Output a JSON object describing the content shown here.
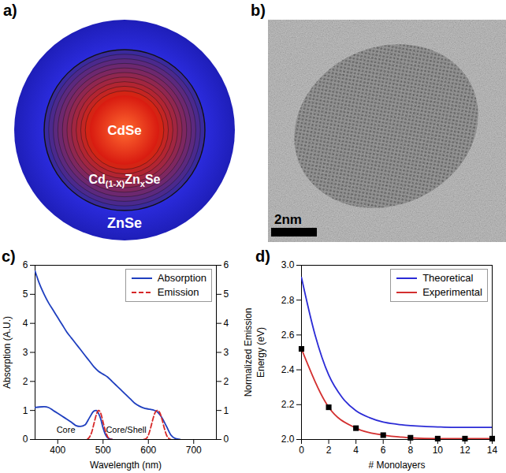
{
  "diagram": {
    "panel_label": "a)",
    "layers": [
      {
        "label": [
          {
            "text": "CdSe"
          }
        ]
      },
      {
        "label": [
          {
            "text": "Cd"
          },
          {
            "text": "(1-X)",
            "sub": true
          },
          {
            "text": "Zn"
          },
          {
            "text": "x",
            "sub": true
          },
          {
            "text": "Se"
          }
        ]
      },
      {
        "label": [
          {
            "text": "ZnSe"
          }
        ]
      }
    ]
  },
  "image": {
    "panel_label": "b)",
    "scale_bar": "2nm"
  },
  "chart_data": [
    {
      "type": "line",
      "panel_label": "c)",
      "x_label": "Wavelength (nm)",
      "y_label": "Absorption (A.U.)",
      "y2_label": "Normalized Emission",
      "xlim": [
        350,
        750
      ],
      "xticks": [
        400,
        500,
        600,
        700
      ],
      "ylim": [
        0,
        6
      ],
      "yticks": [
        0,
        1,
        2,
        3,
        4,
        5,
        6
      ],
      "y2lim": [
        0,
        6
      ],
      "y2ticks": [
        0,
        1,
        2,
        3,
        4,
        5,
        6
      ],
      "legend": "top-right",
      "annotations": [
        {
          "text": "Core",
          "x": 418,
          "y": 0.32
        },
        {
          "text": "Core/Shell",
          "x": 551,
          "y": 0.32
        }
      ],
      "series": [
        {
          "name": "Absorption",
          "color": "#1f3fbf",
          "line_style": "solid",
          "x": [
            350,
            360,
            370,
            380,
            390,
            400,
            410,
            420,
            430,
            440,
            450,
            460,
            470,
            480,
            490,
            500,
            510,
            520,
            530,
            540,
            550,
            560,
            570,
            580,
            590,
            600,
            610,
            620,
            630,
            640,
            650,
            660,
            670
          ],
          "values": [
            5.8,
            5.35,
            5.0,
            4.7,
            4.45,
            4.2,
            3.95,
            3.7,
            3.5,
            3.3,
            3.1,
            2.9,
            2.7,
            2.5,
            2.35,
            2.25,
            2.15,
            2.0,
            1.85,
            1.7,
            1.55,
            1.4,
            1.25,
            1.15,
            1.08,
            1.05,
            1.02,
            0.95,
            0.75,
            0.45,
            0.15,
            0.03,
            0
          ]
        },
        {
          "name": "Absorption",
          "color": "#1f3fbf",
          "line_style": "solid",
          "x": [
            350,
            360,
            370,
            380,
            390,
            400,
            410,
            420,
            430,
            440,
            450,
            460,
            470,
            480,
            485,
            490,
            495,
            500,
            505,
            510,
            520
          ],
          "values": [
            1.1,
            1.12,
            1.13,
            1.1,
            1.0,
            0.9,
            0.8,
            0.7,
            0.6,
            0.48,
            0.45,
            0.5,
            0.75,
            0.98,
            1.0,
            0.9,
            0.7,
            0.4,
            0.18,
            0.06,
            0
          ]
        },
        {
          "name": "Emission",
          "color": "#d62728",
          "line_style": "dashed",
          "axis": "y2",
          "x": [
            465,
            470,
            475,
            480,
            485,
            490,
            495,
            500,
            505,
            510,
            515,
            520
          ],
          "values": [
            0,
            0.08,
            0.25,
            0.55,
            0.85,
            1.0,
            0.9,
            0.6,
            0.3,
            0.1,
            0.02,
            0
          ]
        },
        {
          "name": "Emission",
          "color": "#d62728",
          "line_style": "dashed",
          "axis": "y2",
          "x": [
            590,
            595,
            600,
            605,
            610,
            615,
            620,
            625,
            630,
            635,
            640,
            645,
            650
          ],
          "values": [
            0,
            0.03,
            0.15,
            0.4,
            0.7,
            0.93,
            1.0,
            0.93,
            0.7,
            0.4,
            0.15,
            0.04,
            0
          ]
        }
      ]
    },
    {
      "type": "line",
      "panel_label": "d)",
      "x_label": "# Monolayers",
      "y_label": "Energy (eV)",
      "xlim": [
        0,
        14
      ],
      "xticks": [
        0,
        2,
        4,
        6,
        8,
        10,
        12,
        14
      ],
      "ylim": [
        2,
        3
      ],
      "yticks": [
        {
          "value": 2,
          "label": "2.0"
        },
        {
          "value": 2.2,
          "label": "2.2"
        },
        {
          "value": 2.4,
          "label": "2.4"
        },
        {
          "value": 2.6,
          "label": "2.6"
        },
        {
          "value": 2.8,
          "label": "2.8"
        },
        {
          "value": 3,
          "label": "3.0"
        }
      ],
      "legend": "top-right",
      "series": [
        {
          "name": "Theoretical",
          "color": "#2b2bd6",
          "line_style": "solid",
          "x": [
            0,
            1,
            2,
            3,
            4,
            5,
            6,
            7,
            8,
            9,
            10,
            11,
            12,
            13,
            14
          ],
          "values": [
            2.93,
            2.6,
            2.37,
            2.24,
            2.165,
            2.125,
            2.1,
            2.088,
            2.08,
            2.075,
            2.072,
            2.07,
            2.07,
            2.07,
            2.07
          ]
        },
        {
          "name": "Experimental",
          "color": "#d32f2f",
          "line_style": "solid",
          "marker": "square",
          "x": [
            0,
            2,
            4,
            6,
            8,
            10,
            12,
            14
          ],
          "values": [
            2.52,
            2.185,
            2.065,
            2.025,
            2.01,
            2.005,
            2.005,
            2.005
          ]
        }
      ]
    }
  ]
}
